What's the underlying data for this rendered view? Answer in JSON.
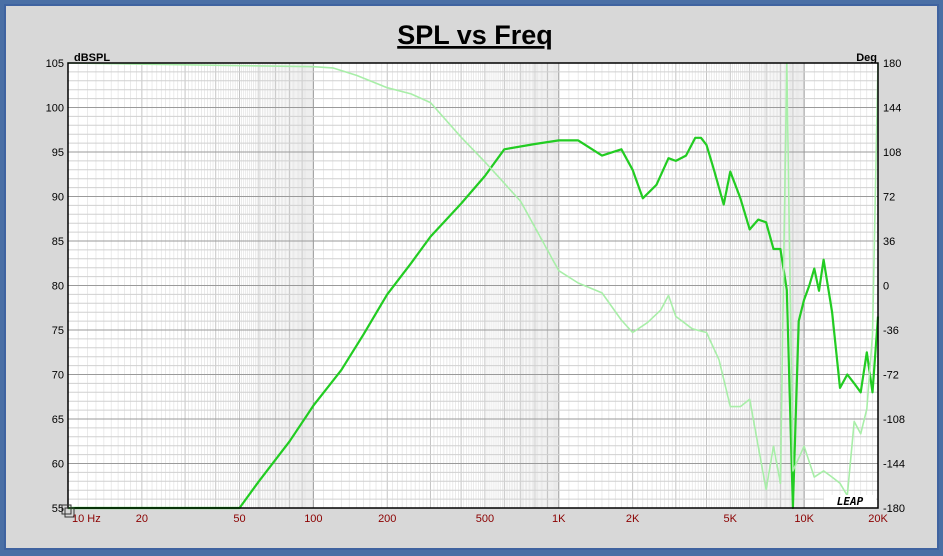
{
  "chart_data": {
    "type": "line",
    "title": "SPL vs Freq",
    "ylabel_left": "dBSPL",
    "ylabel_right": "Deg",
    "x_scale": "log",
    "xlim": [
      10,
      20000
    ],
    "ylim_left": [
      55,
      105
    ],
    "ylim_right": [
      -180,
      180
    ],
    "grid": true,
    "x_tick_labels": [
      {
        "x": 10,
        "label": "10 Hz"
      },
      {
        "x": 20,
        "label": "20"
      },
      {
        "x": 50,
        "label": "50"
      },
      {
        "x": 100,
        "label": "100"
      },
      {
        "x": 200,
        "label": "200"
      },
      {
        "x": 500,
        "label": "500"
      },
      {
        "x": 1000,
        "label": "1K"
      },
      {
        "x": 2000,
        "label": "2K"
      },
      {
        "x": 5000,
        "label": "5K"
      },
      {
        "x": 10000,
        "label": "10K"
      },
      {
        "x": 20000,
        "label": "20K"
      }
    ],
    "y_tick_labels_left": [
      "105",
      "100",
      "95",
      "90",
      "85",
      "80",
      "75",
      "70",
      "65",
      "60",
      "55"
    ],
    "y_tick_labels_right": [
      "180",
      "144",
      "108",
      "72",
      "36",
      "0",
      "-36",
      "-72",
      "-108",
      "-144",
      "-180"
    ],
    "watermark": "LEAP",
    "series": [
      {
        "axis": "left",
        "color": "#22cc22",
        "points": [
          [
            10,
            55
          ],
          [
            50,
            55
          ],
          [
            60,
            58
          ],
          [
            80,
            62.5
          ],
          [
            100,
            66.5
          ],
          [
            130,
            70.5
          ],
          [
            160,
            74.5
          ],
          [
            200,
            79
          ],
          [
            250,
            82.5
          ],
          [
            300,
            85.5
          ],
          [
            400,
            89.2
          ],
          [
            500,
            92.3
          ],
          [
            600,
            95.3
          ],
          [
            800,
            95.9
          ],
          [
            1000,
            96.3
          ],
          [
            1200,
            96.3
          ],
          [
            1500,
            94.6
          ],
          [
            1800,
            95.3
          ],
          [
            2000,
            93
          ],
          [
            2200,
            89.8
          ],
          [
            2500,
            91.3
          ],
          [
            2800,
            94.3
          ],
          [
            3000,
            94
          ],
          [
            3300,
            94.6
          ],
          [
            3600,
            96.6
          ],
          [
            3800,
            96.6
          ],
          [
            4000,
            95.8
          ],
          [
            4300,
            92.9
          ],
          [
            4700,
            89.1
          ],
          [
            5000,
            92.8
          ],
          [
            5500,
            89.8
          ],
          [
            6000,
            86.3
          ],
          [
            6500,
            87.4
          ],
          [
            7000,
            87.1
          ],
          [
            7500,
            84.1
          ],
          [
            8000,
            84.1
          ],
          [
            8500,
            79.5
          ],
          [
            9000,
            55
          ],
          [
            9500,
            76
          ],
          [
            10000,
            78.4
          ],
          [
            10500,
            80
          ],
          [
            11000,
            81.9
          ],
          [
            11500,
            79.4
          ],
          [
            12000,
            82.9
          ],
          [
            13000,
            77
          ],
          [
            14000,
            68.5
          ],
          [
            15000,
            70
          ],
          [
            16000,
            69
          ],
          [
            17000,
            68
          ],
          [
            18000,
            72.5
          ],
          [
            19000,
            68
          ],
          [
            20000,
            76.5
          ]
        ]
      },
      {
        "axis": "right",
        "color": "#a8eea8",
        "points": [
          [
            10,
            180
          ],
          [
            100,
            177
          ],
          [
            120,
            176
          ],
          [
            150,
            170
          ],
          [
            200,
            160
          ],
          [
            250,
            155
          ],
          [
            300,
            148
          ],
          [
            400,
            120
          ],
          [
            500,
            100
          ],
          [
            700,
            68
          ],
          [
            1000,
            12
          ],
          [
            1200,
            2
          ],
          [
            1500,
            -6
          ],
          [
            1800,
            -28
          ],
          [
            2000,
            -38
          ],
          [
            2300,
            -30
          ],
          [
            2600,
            -20
          ],
          [
            2800,
            -8
          ],
          [
            3000,
            -25
          ],
          [
            3500,
            -35
          ],
          [
            4000,
            -38
          ],
          [
            4500,
            -60
          ],
          [
            5000,
            -98
          ],
          [
            5500,
            -98
          ],
          [
            6000,
            -92
          ],
          [
            6500,
            -130
          ],
          [
            7000,
            -165
          ],
          [
            7500,
            -130
          ],
          [
            8000,
            -160
          ],
          [
            8500,
            180
          ],
          [
            9000,
            -150
          ],
          [
            10000,
            -130
          ],
          [
            11000,
            -155
          ],
          [
            12000,
            -150
          ],
          [
            13000,
            -155
          ],
          [
            14000,
            -160
          ],
          [
            15000,
            -170
          ],
          [
            16000,
            -110
          ],
          [
            17000,
            -120
          ],
          [
            18000,
            -100
          ],
          [
            19000,
            -40
          ],
          [
            20000,
            180
          ]
        ]
      }
    ]
  }
}
